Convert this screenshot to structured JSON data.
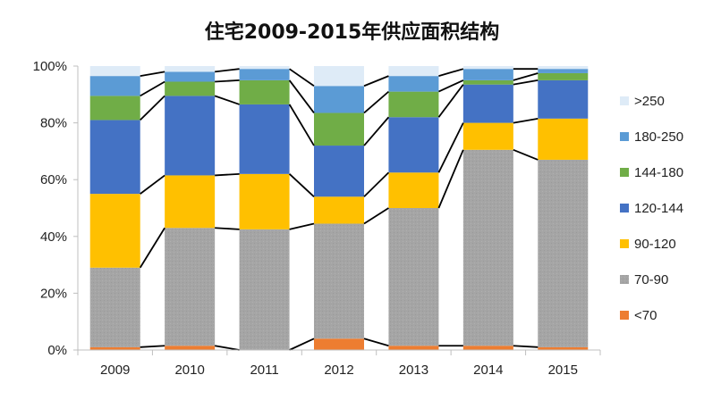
{
  "chart_data": {
    "type": "bar",
    "stacked": true,
    "percent": true,
    "title": "住宅2009-2015年供应面积结构",
    "categories": [
      "2009",
      "2010",
      "2011",
      "2012",
      "2013",
      "2014",
      "2015"
    ],
    "ylim": [
      0,
      100
    ],
    "y_ticks": [
      "0%",
      "20%",
      "40%",
      "60%",
      "80%",
      "100%"
    ],
    "grid": false,
    "series_connector_lines": true,
    "legend_position": "right",
    "series": [
      {
        "name": "<70",
        "color": "#ED7D31",
        "values": [
          1,
          1.5,
          0,
          4,
          1.5,
          1.5,
          1
        ]
      },
      {
        "name": "70-90",
        "color": "#A5A5A5",
        "values": [
          28,
          41.5,
          42.5,
          40.5,
          48.5,
          69,
          66
        ]
      },
      {
        "name": "90-120",
        "color": "#FFC000",
        "values": [
          26,
          18.5,
          19.5,
          9.5,
          12.5,
          9.5,
          14.5
        ]
      },
      {
        "name": "120-144",
        "color": "#4472C4",
        "values": [
          26,
          28,
          24.5,
          18,
          19.5,
          13.5,
          13.5
        ]
      },
      {
        "name": "144-180",
        "color": "#70AD47",
        "values": [
          8.5,
          5,
          8.5,
          11.5,
          9,
          1.5,
          2.5
        ]
      },
      {
        "name": "180-250",
        "color": "#5B9BD5",
        "values": [
          7,
          3.5,
          4,
          9.5,
          5.5,
          4,
          1.5
        ]
      },
      {
        "name": ">250",
        "color": "#DEEBF7",
        "values": [
          3.5,
          2,
          1,
          7,
          3.5,
          1,
          1
        ]
      }
    ]
  }
}
